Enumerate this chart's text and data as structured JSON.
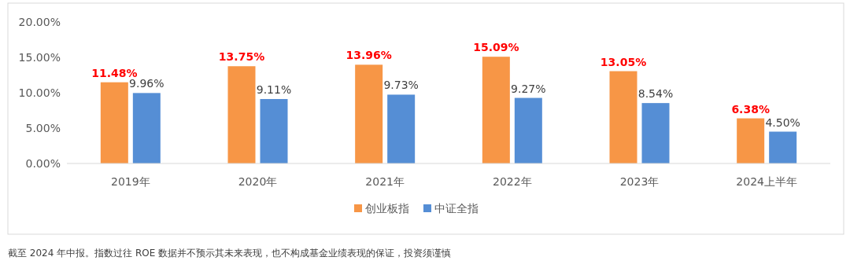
{
  "chart_data": {
    "type": "bar",
    "categories": [
      "2019年",
      "2020年",
      "2021年",
      "2022年",
      "2023年",
      "2024上半年"
    ],
    "series": [
      {
        "name": "创业板指",
        "color": "#f79646",
        "values": [
          11.48,
          13.75,
          13.96,
          15.09,
          13.05,
          6.38
        ],
        "value_labels": [
          "11.48%",
          "13.75%",
          "13.96%",
          "15.09%",
          "13.05%",
          "6.38%"
        ]
      },
      {
        "name": "中证全指",
        "color": "#558ed5",
        "values": [
          9.96,
          9.11,
          9.73,
          9.27,
          8.54,
          4.5
        ],
        "value_labels": [
          "9.96%",
          "9.11%",
          "9.73%",
          "9.27%",
          "8.54%",
          "4.50%"
        ]
      }
    ],
    "ylim": [
      0,
      20
    ],
    "yticks": [
      {
        "value": 0,
        "label": "0.00%"
      },
      {
        "value": 5,
        "label": "5.00%"
      },
      {
        "value": 10,
        "label": "10.00%"
      },
      {
        "value": 15,
        "label": "15.00%"
      },
      {
        "value": 20,
        "label": "20.00%"
      }
    ],
    "legend": "bottom",
    "annotations": [
      "截至 2024 年中报。指数过往 ROE 数据并不预示其未来表现，也不构成基金业绩表现的保证，投资须谨慎"
    ]
  }
}
